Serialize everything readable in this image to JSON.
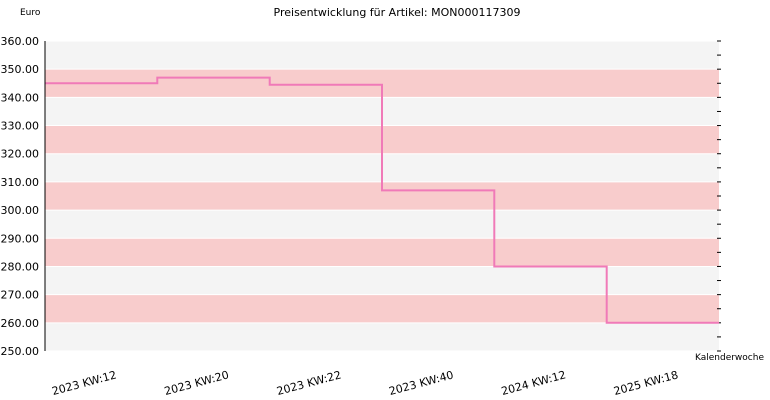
{
  "chart_data": {
    "type": "line",
    "title": "Preisentwicklung für Artikel: MON000117309",
    "ylabel": "Euro",
    "xlabel": "Kalenderwoche",
    "ylim": [
      250,
      360
    ],
    "yticks": [
      "250.00",
      "260.00",
      "270.00",
      "280.00",
      "290.00",
      "300.00",
      "310.00",
      "320.00",
      "330.00",
      "340.00",
      "350.00",
      "360.00"
    ],
    "categories": [
      "2023 KW:12",
      "2023 KW:20",
      "2023 KW:22",
      "2023 KW:40",
      "2024 KW:12",
      "2025 KW:18"
    ],
    "step": true,
    "grid": true,
    "series": [
      {
        "values": [
          345,
          347,
          344.5,
          307,
          280,
          260
        ]
      }
    ],
    "colors": {
      "line": "#f07ab8",
      "band_dark": "#f8cccc",
      "band_light": "#f4f4f4",
      "axis": "#000000"
    }
  }
}
